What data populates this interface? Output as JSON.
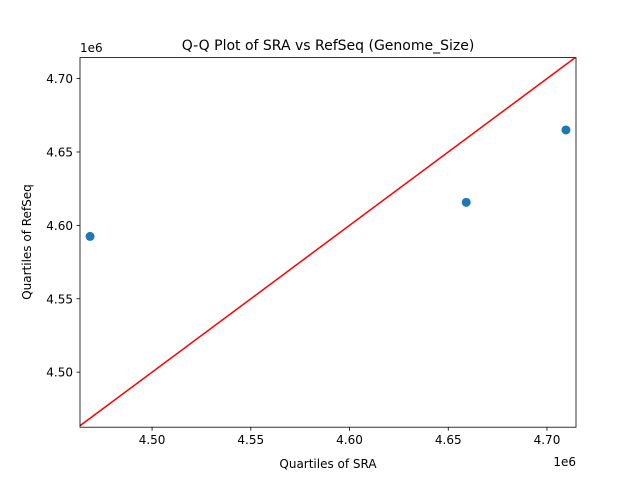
{
  "chart_data": {
    "type": "scatter",
    "title": "Q-Q Plot of SRA vs RefSeq (Genome_Size)",
    "xlabel": "Quartiles of SRA",
    "ylabel": "Quartiles of RefSeq",
    "x_offset_label": "1e6",
    "y_offset_label": "1e6",
    "series": [
      {
        "color": "#1f77b4",
        "x": [
          4.4686,
          4.6591,
          4.7096
        ],
        "values": [
          4.5925,
          4.6157,
          4.665
        ]
      }
    ],
    "reference_line": {
      "color": "red",
      "x": [
        4.4635,
        4.7147
      ],
      "values": [
        4.4635,
        4.7147
      ]
    },
    "xlim": [
      4.4635,
      4.7147
    ],
    "ylim": [
      4.4625,
      4.7143
    ],
    "xticks": [
      {
        "value": 4.5,
        "label": "4.50"
      },
      {
        "value": 4.55,
        "label": "4.55"
      },
      {
        "value": 4.6,
        "label": "4.60"
      },
      {
        "value": 4.65,
        "label": "4.65"
      },
      {
        "value": 4.7,
        "label": "4.70"
      }
    ],
    "yticks": [
      {
        "value": 4.5,
        "label": "4.50"
      },
      {
        "value": 4.55,
        "label": "4.55"
      },
      {
        "value": 4.6,
        "label": "4.60"
      },
      {
        "value": 4.65,
        "label": "4.65"
      },
      {
        "value": 4.7,
        "label": "4.70"
      }
    ],
    "grid": false
  }
}
